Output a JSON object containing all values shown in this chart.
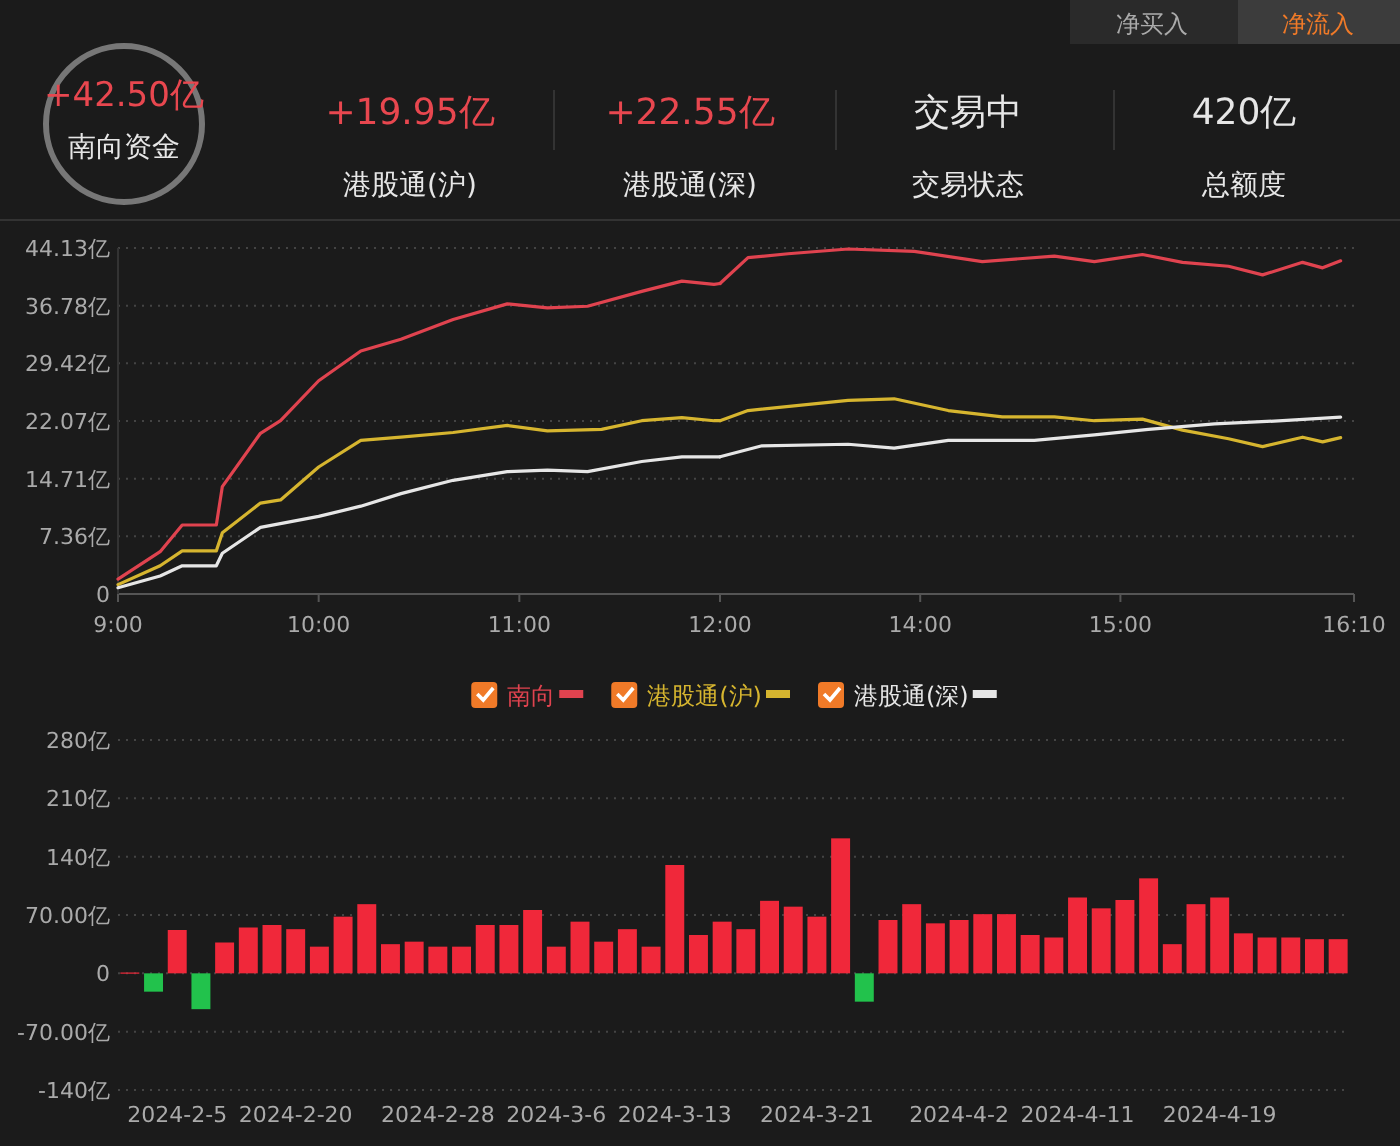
{
  "chart_data": [
    {
      "type": "other",
      "annotations": [
        "净买入",
        "净流入",
        "+42.50亿",
        "南向资金",
        "+19.95亿",
        "港股通(沪)",
        "+22.55亿",
        "港股通(深)",
        "交易中",
        "交易状态",
        "420亿",
        "总额度"
      ]
    },
    {
      "type": "line",
      "xlim": [
        9,
        12
      ],
      "xticks": [
        {
          "value": 9,
          "label": "9:00"
        },
        {
          "value": 10,
          "label": "10:00"
        },
        {
          "value": 11,
          "label": "11:00"
        },
        {
          "value": 12,
          "label": "12:00"
        }
      ],
      "ylim": [
        0,
        44.13
      ],
      "yticks": [
        0,
        {
          "value": 7.36,
          "label": "7.36亿"
        },
        {
          "value": 14.71,
          "label": "14.71亿"
        },
        {
          "value": 22.07,
          "label": "22.07亿"
        },
        {
          "value": 29.42,
          "label": "29.42亿"
        },
        {
          "value": 36.78,
          "label": "36.78亿"
        },
        {
          "value": 44.13,
          "label": "44.13亿"
        }
      ],
      "grid": "y",
      "legend": "bottom",
      "series": [
        {
          "name": "南向",
          "color": "#e0434f",
          "x": [
            9,
            9.21,
            9.32,
            9.49,
            9.52,
            9.71,
            9.81,
            10.0,
            10.21,
            10.41,
            10.67,
            10.94,
            11.14,
            11.34,
            11.61,
            11.81,
            11.97,
            12
          ],
          "values": [
            1.9,
            5.4,
            8.8,
            8.8,
            13.7,
            20.5,
            22.1,
            27.2,
            31.0,
            32.5,
            35.0,
            37.0,
            36.5,
            36.7,
            38.6,
            39.9,
            39.5,
            39.6
          ]
        },
        {
          "name": "港股通(沪)",
          "color": "#d6b52f",
          "x": [
            9,
            9.21,
            9.32,
            9.49,
            9.52,
            9.71,
            9.81,
            10.0,
            10.21,
            10.41,
            10.67,
            10.94,
            11.14,
            11.41,
            11.61,
            11.81,
            11.97,
            12
          ],
          "values": [
            1.2,
            3.6,
            5.5,
            5.5,
            7.8,
            11.6,
            12.0,
            16.2,
            19.6,
            20.0,
            20.6,
            21.5,
            20.8,
            21.0,
            22.1,
            22.5,
            22.1,
            22.1
          ]
        },
        {
          "name": "港股通(深)",
          "color": "#e6e6e6",
          "x": [
            9,
            9.21,
            9.32,
            9.49,
            9.52,
            9.71,
            10.0,
            10.21,
            10.41,
            10.67,
            10.94,
            11.14,
            11.34,
            11.61,
            11.81,
            11.97,
            12
          ],
          "values": [
            0.8,
            2.3,
            3.6,
            3.6,
            5.2,
            8.5,
            9.9,
            11.2,
            12.8,
            14.5,
            15.6,
            15.8,
            15.6,
            16.9,
            17.5,
            17.5,
            17.5
          ]
        }
      ]
    },
    {
      "type": "line",
      "xlim": [
        13,
        16.1667
      ],
      "xticks": [
        {
          "value": 14,
          "label": "14:00"
        },
        {
          "value": 15,
          "label": "15:00"
        },
        {
          "value": 16.1667,
          "label": "16:10"
        }
      ],
      "ylim": [
        0,
        44.13
      ],
      "yticks": [
        0,
        7.36,
        14.71,
        22.07,
        29.42,
        36.78,
        44.13
      ],
      "grid": "y",
      "tick_labels": "x",
      "series": [
        {
          "color": "#e0434f",
          "x": [
            13,
            13.14,
            13.34,
            13.64,
            13.97,
            14.31,
            14.67,
            14.87,
            15.11,
            15.31,
            15.54,
            15.71,
            15.91,
            16.01,
            16.1
          ],
          "values": [
            39.6,
            42.9,
            43.4,
            44.0,
            43.7,
            42.4,
            43.1,
            42.4,
            43.3,
            42.3,
            41.8,
            40.7,
            42.3,
            41.6,
            42.5
          ]
        },
        {
          "color": "#d6b52f",
          "x": [
            13,
            13.14,
            13.64,
            13.87,
            14.14,
            14.41,
            14.67,
            14.87,
            15.11,
            15.31,
            15.54,
            15.71,
            15.91,
            16.01,
            16.1
          ],
          "values": [
            22.1,
            23.4,
            24.7,
            24.9,
            23.4,
            22.6,
            22.6,
            22.1,
            22.3,
            20.9,
            19.8,
            18.8,
            20.0,
            19.4,
            19.95
          ]
        },
        {
          "color": "#e6e6e6",
          "x": [
            13,
            13.21,
            13.64,
            13.87,
            14.14,
            14.57,
            14.87,
            15.14,
            15.47,
            15.81,
            16.1
          ],
          "values": [
            17.5,
            18.9,
            19.1,
            18.6,
            19.6,
            19.6,
            20.3,
            21.0,
            21.7,
            22.1,
            22.55
          ]
        }
      ]
    },
    {
      "type": "bar",
      "ylim": [
        -140,
        280
      ],
      "yticks": [
        {
          "value": -140,
          "label": "-140亿"
        },
        {
          "value": -70,
          "label": "-70.00亿"
        },
        0,
        {
          "value": 70,
          "label": "70.00亿"
        },
        {
          "value": 140,
          "label": "140亿"
        },
        {
          "value": 210,
          "label": "210亿"
        },
        {
          "value": 280,
          "label": "280亿"
        }
      ],
      "grid": "y",
      "categories": [
        null,
        null,
        "2024-2-5",
        null,
        null,
        null,
        null,
        "2024-2-20",
        null,
        null,
        null,
        null,
        null,
        "2024-2-28",
        null,
        null,
        null,
        null,
        "2024-3-6",
        null,
        null,
        null,
        null,
        "2024-3-13",
        null,
        null,
        null,
        null,
        null,
        "2024-3-21",
        null,
        null,
        null,
        null,
        null,
        "2024-4-2",
        null,
        null,
        null,
        null,
        "2024-4-11",
        null,
        null,
        null,
        null,
        null,
        "2024-4-19",
        null,
        null,
        null,
        null,
        null
      ],
      "values": [
        1,
        -22,
        52,
        -43,
        37,
        55,
        58,
        53,
        32,
        68,
        83,
        35,
        38,
        32,
        32,
        58,
        58,
        76,
        32,
        62,
        38,
        53,
        32,
        130,
        46,
        62,
        53,
        87,
        80,
        68,
        162,
        -34,
        64,
        83,
        60,
        64,
        71,
        71,
        46,
        43,
        91,
        78,
        88,
        114,
        35,
        83,
        91,
        48,
        43,
        43,
        41,
        41
      ],
      "colors": [
        "#f0283a",
        "#22c24c",
        "#f0283a",
        "#22c24c",
        "#f0283a",
        "#f0283a",
        "#f0283a",
        "#f0283a",
        "#f0283a",
        "#f0283a",
        "#f0283a",
        "#f0283a",
        "#f0283a",
        "#f0283a",
        "#f0283a",
        "#f0283a",
        "#f0283a",
        "#f0283a",
        "#f0283a",
        "#f0283a",
        "#f0283a",
        "#f0283a",
        "#f0283a",
        "#f0283a",
        "#f0283a",
        "#f0283a",
        "#f0283a",
        "#f0283a",
        "#f0283a",
        "#f0283a",
        "#f0283a",
        "#22c24c",
        "#f0283a",
        "#f0283a",
        "#f0283a",
        "#f0283a",
        "#f0283a",
        "#f0283a",
        "#f0283a",
        "#f0283a",
        "#f0283a",
        "#f0283a",
        "#f0283a",
        "#f0283a",
        "#f0283a",
        "#f0283a",
        "#f0283a",
        "#f0283a",
        "#f0283a",
        "#f0283a",
        "#f0283a",
        "#f0283a"
      ]
    }
  ]
}
